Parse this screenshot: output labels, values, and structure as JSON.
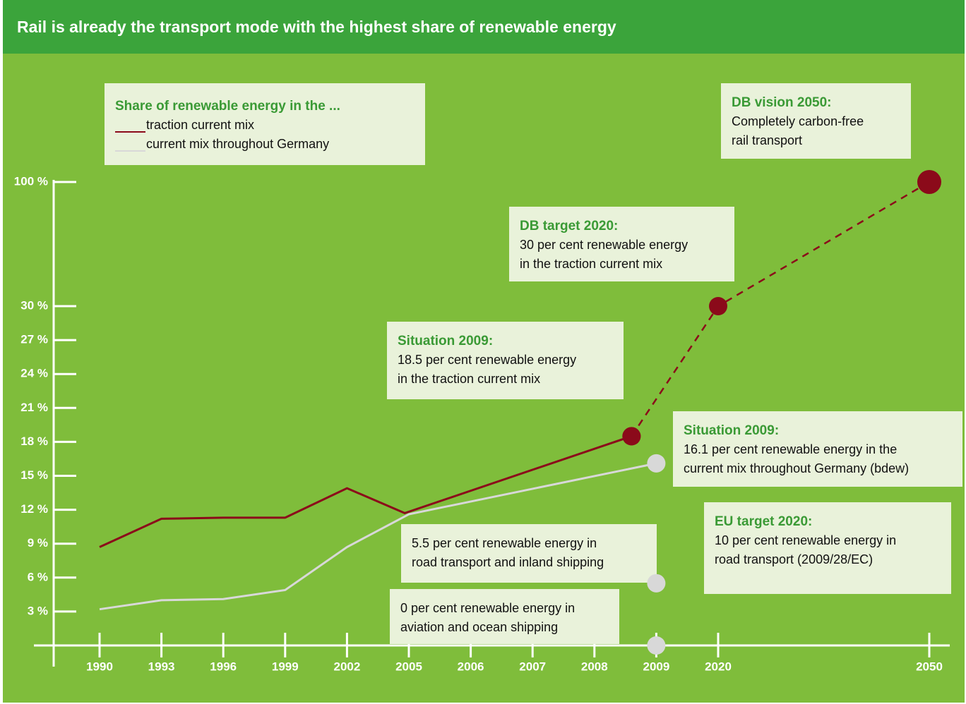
{
  "chart_data": {
    "type": "line",
    "title": "Rail is already the transport mode with the highest share of renewable energy",
    "legend_title": "Share of renewable energy in the ...",
    "xticks": [
      1990,
      1993,
      1996,
      1999,
      2002,
      2005,
      2006,
      2007,
      2008,
      2009,
      2020,
      2050
    ],
    "ylim": [
      0,
      100
    ],
    "yticks": [
      {
        "value": 3,
        "label": "3 %"
      },
      {
        "value": 6,
        "label": "6 %"
      },
      {
        "value": 9,
        "label": "9 %"
      },
      {
        "value": 12,
        "label": "12 %"
      },
      {
        "value": 15,
        "label": "15 %"
      },
      {
        "value": 18,
        "label": "18 %"
      },
      {
        "value": 21,
        "label": "21 %"
      },
      {
        "value": 24,
        "label": "24 %"
      },
      {
        "value": 27,
        "label": "27 %"
      },
      {
        "value": 30,
        "label": "30 %"
      },
      {
        "value": 100,
        "label": "100 %"
      }
    ],
    "series": [
      {
        "name": "traction current mix",
        "color": "#8b0a1a",
        "x": [
          1990,
          1993,
          1996,
          1999,
          2002,
          2004.8,
          2008.6
        ],
        "values": [
          8.7,
          11.2,
          11.3,
          11.3,
          13.9,
          11.7,
          18.5
        ],
        "end_marker": true
      },
      {
        "name": "current mix throughout Germany",
        "color": "#d8d8d8",
        "x": [
          1990,
          1993,
          1996,
          1999,
          2002,
          2005,
          2009
        ],
        "values": [
          3.2,
          4.0,
          4.1,
          4.9,
          8.7,
          11.6,
          16.1
        ],
        "end_marker": true
      },
      {
        "color": "#8b0a1a",
        "line_style": "dashed",
        "x": [
          2008.6,
          2020,
          2050
        ],
        "values": [
          18.5,
          30,
          100
        ],
        "markers": true
      },
      {
        "color": "#d8d8d8",
        "line_style": "none",
        "x": [
          2009,
          2009
        ],
        "values": [
          5.5,
          0
        ],
        "markers": true
      }
    ],
    "annotations": [
      {
        "title": "DB vision 2050:",
        "lines": [
          "Completely carbon-free",
          "rail transport"
        ]
      },
      {
        "title": "DB target 2020:",
        "lines": [
          "30 per cent renewable energy",
          "in the traction current mix"
        ]
      },
      {
        "title": "Situation 2009:",
        "lines": [
          "18.5 per cent renewable energy",
          "in the traction current mix"
        ]
      },
      {
        "title": "Situation 2009:",
        "lines": [
          "16.1 per cent renewable energy in the",
          "current mix throughout Germany (bdew)"
        ]
      },
      {
        "title": "EU target 2020:",
        "lines": [
          "10 per cent renewable energy in",
          "road transport (2009/28/EC)"
        ]
      },
      {
        "lines": [
          "5.5 per cent renewable energy in",
          "road transport and inland shipping"
        ]
      },
      {
        "lines": [
          "0 per cent renewable energy in",
          "aviation and ocean shipping"
        ]
      }
    ]
  }
}
